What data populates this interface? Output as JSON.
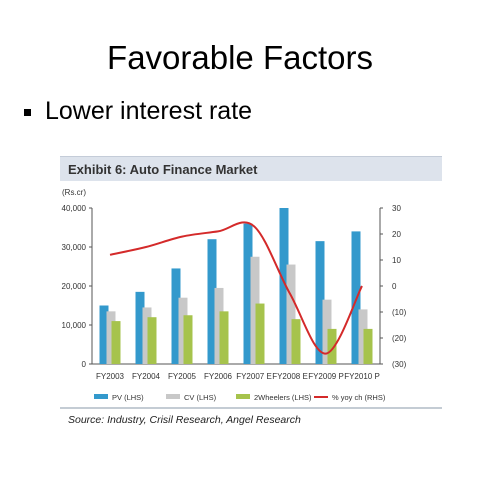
{
  "slide": {
    "title": "Favorable Factors",
    "bullet": "Lower interest rate"
  },
  "exhibit": {
    "header": "Exhibit 6: Auto Finance Market",
    "source": "Source: Industry, Crisil Research, Angel Research"
  },
  "chart_data": {
    "type": "bar",
    "ylabel_left": "(Rs.cr)",
    "categories": [
      "FY2003",
      "FY2004",
      "FY2005",
      "FY2006",
      "FY2007 E",
      "FY2008 E",
      "FY2009 P",
      "FY2010 P"
    ],
    "ylim_left": [
      0,
      40000
    ],
    "yticks_left": [
      "0",
      "10,000",
      "20,000",
      "30,000",
      "40,000"
    ],
    "ylim_right": [
      -30,
      30
    ],
    "yticks_right": [
      "(30)",
      "(20)",
      "(10)",
      "0",
      "10",
      "20",
      "30"
    ],
    "series": [
      {
        "name": "PV (LHS)",
        "type": "bar",
        "color": "#3399cc",
        "values": [
          15000,
          18500,
          24500,
          32000,
          36000,
          40000,
          31500,
          34000
        ]
      },
      {
        "name": "CV (LHS)",
        "type": "bar",
        "color": "#c8c8c8",
        "values": [
          13500,
          14500,
          17000,
          19500,
          27500,
          25500,
          16500,
          14000
        ]
      },
      {
        "name": "2Wheelers (LHS)",
        "type": "bar",
        "color": "#a6c34c",
        "values": [
          11000,
          12000,
          12500,
          13500,
          15500,
          11500,
          9000,
          9000
        ]
      },
      {
        "name": "% yoy ch (RHS)",
        "type": "line",
        "color": "#d42a2a",
        "values": [
          12,
          15,
          19,
          21,
          23,
          -3,
          -26,
          0
        ]
      }
    ],
    "legend_position": "bottom",
    "grid": false
  }
}
